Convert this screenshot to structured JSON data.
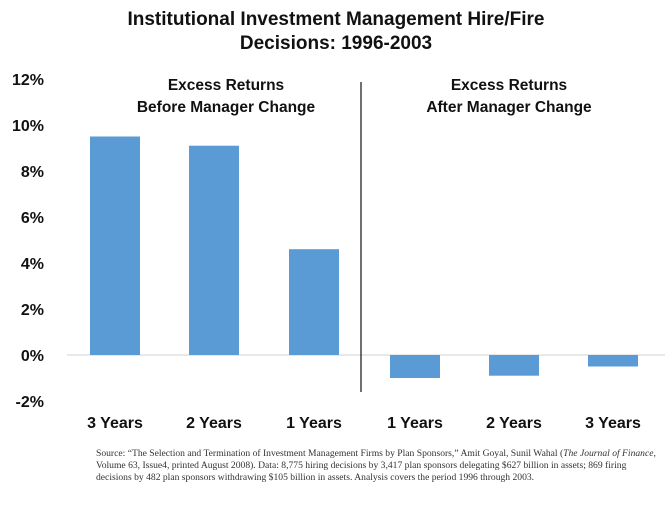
{
  "chart_data": {
    "type": "bar",
    "title": [
      "Institutional Investment Management Hire/Fire",
      "Decisions: 1996-2003"
    ],
    "categories": [
      "3 Years",
      "2 Years",
      "1 Years",
      "1 Years",
      "2 Years",
      "3 Years"
    ],
    "values": [
      9.5,
      9.1,
      4.6,
      -1.0,
      -0.9,
      -0.5
    ],
    "ylim": [
      -2,
      12
    ],
    "yticks": [
      "-2%",
      "0%",
      "2%",
      "4%",
      "6%",
      "8%",
      "10%",
      "12%"
    ],
    "grid": false,
    "bar_color": "#5b9bd5",
    "groups": [
      {
        "label_lines": [
          "Excess Returns",
          "Before Manager Change"
        ]
      },
      {
        "label_lines": [
          "Excess Returns",
          "After Manager Change"
        ]
      }
    ]
  },
  "source": {
    "part1": "Source: “The Selection and Termination of Investment Management Firms by Plan Sponsors,” Amit Goyal, Sunil Wahal (",
    "journal": "The Journal of Finance",
    "part2": ", Volume 63, Issue4, printed August 2008). Data: 8,775 hiring decisions by 3,417 plan sponsors delegating $627 billion in assets; 869 firing decisions by 482 plan sponsors withdrawing $105 billion in assets. Analysis covers the period 1996 through 2003."
  }
}
